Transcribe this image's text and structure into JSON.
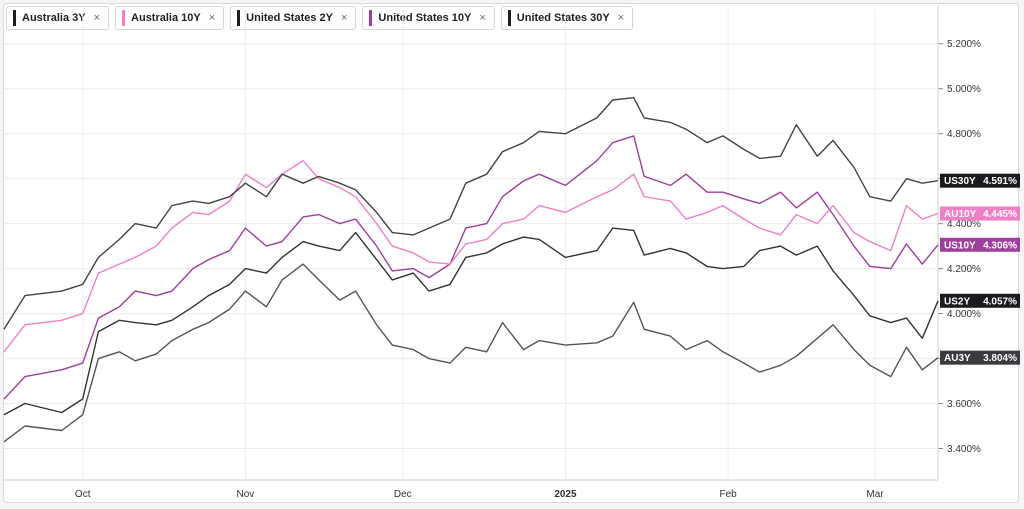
{
  "legend": [
    {
      "label": "Australia 3Y",
      "color": "#1e1e1e"
    },
    {
      "label": "Australia 10Y",
      "color": "#f07fc6"
    },
    {
      "label": "United States 2Y",
      "color": "#1e1e1e"
    },
    {
      "label": "United States 10Y",
      "color": "#9d3f9d"
    },
    {
      "label": "United States 30Y",
      "color": "#1e1e1e"
    }
  ],
  "close_glyph": "×",
  "chart_data": {
    "type": "line",
    "x_ticks": [
      "Oct",
      "Nov",
      "Dec",
      "2025",
      "Feb",
      "Mar"
    ],
    "y_ticks": [
      "3.400%",
      "3.600%",
      "3.800%",
      "4.000%",
      "4.200%",
      "4.400%",
      "4.600%",
      "4.800%",
      "5.000%",
      "5.200%"
    ],
    "ylim": [
      3.26,
      5.35
    ],
    "grid": true,
    "x_range": [
      "2024-09-16",
      "2025-03-13"
    ],
    "series": [
      {
        "name": "US30Y",
        "value_label": "4.591%",
        "color": "#444444",
        "tag_color": "#1b1b1f",
        "points": [
          [
            "2024-09-16",
            3.93
          ],
          [
            "2024-09-20",
            4.08
          ],
          [
            "2024-09-27",
            4.1
          ],
          [
            "2024-10-01",
            4.13
          ],
          [
            "2024-10-04",
            4.25
          ],
          [
            "2024-10-08",
            4.33
          ],
          [
            "2024-10-11",
            4.4
          ],
          [
            "2024-10-15",
            4.38
          ],
          [
            "2024-10-18",
            4.48
          ],
          [
            "2024-10-22",
            4.5
          ],
          [
            "2024-10-25",
            4.49
          ],
          [
            "2024-10-29",
            4.52
          ],
          [
            "2024-11-01",
            4.58
          ],
          [
            "2024-11-05",
            4.52
          ],
          [
            "2024-11-08",
            4.62
          ],
          [
            "2024-11-12",
            4.58
          ],
          [
            "2024-11-15",
            4.61
          ],
          [
            "2024-11-19",
            4.58
          ],
          [
            "2024-11-22",
            4.55
          ],
          [
            "2024-11-26",
            4.45
          ],
          [
            "2024-11-29",
            4.36
          ],
          [
            "2024-12-03",
            4.35
          ],
          [
            "2024-12-06",
            4.38
          ],
          [
            "2024-12-10",
            4.42
          ],
          [
            "2024-12-13",
            4.58
          ],
          [
            "2024-12-17",
            4.62
          ],
          [
            "2024-12-20",
            4.72
          ],
          [
            "2024-12-24",
            4.76
          ],
          [
            "2024-12-27",
            4.81
          ],
          [
            "2025-01-01",
            4.8
          ],
          [
            "2025-01-07",
            4.87
          ],
          [
            "2025-01-10",
            4.95
          ],
          [
            "2025-01-14",
            4.96
          ],
          [
            "2025-01-16",
            4.87
          ],
          [
            "2025-01-21",
            4.85
          ],
          [
            "2025-01-24",
            4.82
          ],
          [
            "2025-01-28",
            4.76
          ],
          [
            "2025-01-31",
            4.79
          ],
          [
            "2025-02-04",
            4.73
          ],
          [
            "2025-02-07",
            4.69
          ],
          [
            "2025-02-11",
            4.7
          ],
          [
            "2025-02-14",
            4.84
          ],
          [
            "2025-02-18",
            4.7
          ],
          [
            "2025-02-21",
            4.77
          ],
          [
            "2025-02-25",
            4.65
          ],
          [
            "2025-02-28",
            4.52
          ],
          [
            "2025-03-04",
            4.5
          ],
          [
            "2025-03-07",
            4.6
          ],
          [
            "2025-03-10",
            4.58
          ],
          [
            "2025-03-13",
            4.591
          ]
        ]
      },
      {
        "name": "AU10Y",
        "value_label": "4.445%",
        "color": "#f07fc6",
        "tag_color": "#f07fc6",
        "points": [
          [
            "2024-09-16",
            3.83
          ],
          [
            "2024-09-20",
            3.95
          ],
          [
            "2024-09-27",
            3.97
          ],
          [
            "2024-10-01",
            4.0
          ],
          [
            "2024-10-04",
            4.18
          ],
          [
            "2024-10-08",
            4.22
          ],
          [
            "2024-10-11",
            4.25
          ],
          [
            "2024-10-15",
            4.3
          ],
          [
            "2024-10-18",
            4.38
          ],
          [
            "2024-10-22",
            4.45
          ],
          [
            "2024-10-25",
            4.44
          ],
          [
            "2024-10-29",
            4.5
          ],
          [
            "2024-11-01",
            4.62
          ],
          [
            "2024-11-05",
            4.56
          ],
          [
            "2024-11-08",
            4.62
          ],
          [
            "2024-11-12",
            4.68
          ],
          [
            "2024-11-15",
            4.6
          ],
          [
            "2024-11-19",
            4.56
          ],
          [
            "2024-11-22",
            4.52
          ],
          [
            "2024-11-26",
            4.4
          ],
          [
            "2024-11-29",
            4.3
          ],
          [
            "2024-12-03",
            4.27
          ],
          [
            "2024-12-06",
            4.23
          ],
          [
            "2024-12-10",
            4.22
          ],
          [
            "2024-12-13",
            4.31
          ],
          [
            "2024-12-17",
            4.33
          ],
          [
            "2024-12-20",
            4.4
          ],
          [
            "2024-12-24",
            4.42
          ],
          [
            "2024-12-27",
            4.48
          ],
          [
            "2025-01-01",
            4.45
          ],
          [
            "2025-01-07",
            4.52
          ],
          [
            "2025-01-10",
            4.55
          ],
          [
            "2025-01-14",
            4.62
          ],
          [
            "2025-01-16",
            4.52
          ],
          [
            "2025-01-21",
            4.5
          ],
          [
            "2025-01-24",
            4.42
          ],
          [
            "2025-01-28",
            4.45
          ],
          [
            "2025-01-31",
            4.48
          ],
          [
            "2025-02-04",
            4.42
          ],
          [
            "2025-02-07",
            4.38
          ],
          [
            "2025-02-11",
            4.35
          ],
          [
            "2025-02-14",
            4.44
          ],
          [
            "2025-02-18",
            4.4
          ],
          [
            "2025-02-21",
            4.48
          ],
          [
            "2025-02-25",
            4.36
          ],
          [
            "2025-02-28",
            4.32
          ],
          [
            "2025-03-04",
            4.28
          ],
          [
            "2025-03-07",
            4.48
          ],
          [
            "2025-03-10",
            4.42
          ],
          [
            "2025-03-13",
            4.445
          ]
        ]
      },
      {
        "name": "US10Y",
        "value_label": "4.306%",
        "color": "#9d3f9d",
        "tag_color": "#9d3f9d",
        "points": [
          [
            "2024-09-16",
            3.62
          ],
          [
            "2024-09-20",
            3.72
          ],
          [
            "2024-09-27",
            3.75
          ],
          [
            "2024-10-01",
            3.78
          ],
          [
            "2024-10-04",
            3.98
          ],
          [
            "2024-10-08",
            4.03
          ],
          [
            "2024-10-11",
            4.1
          ],
          [
            "2024-10-15",
            4.08
          ],
          [
            "2024-10-18",
            4.1
          ],
          [
            "2024-10-22",
            4.2
          ],
          [
            "2024-10-25",
            4.24
          ],
          [
            "2024-10-29",
            4.28
          ],
          [
            "2024-11-01",
            4.38
          ],
          [
            "2024-11-05",
            4.3
          ],
          [
            "2024-11-08",
            4.32
          ],
          [
            "2024-11-12",
            4.43
          ],
          [
            "2024-11-15",
            4.44
          ],
          [
            "2024-11-19",
            4.4
          ],
          [
            "2024-11-22",
            4.42
          ],
          [
            "2024-11-26",
            4.3
          ],
          [
            "2024-11-29",
            4.19
          ],
          [
            "2024-12-03",
            4.2
          ],
          [
            "2024-12-06",
            4.16
          ],
          [
            "2024-12-10",
            4.22
          ],
          [
            "2024-12-13",
            4.38
          ],
          [
            "2024-12-17",
            4.4
          ],
          [
            "2024-12-20",
            4.52
          ],
          [
            "2024-12-24",
            4.59
          ],
          [
            "2024-12-27",
            4.62
          ],
          [
            "2025-01-01",
            4.57
          ],
          [
            "2025-01-07",
            4.68
          ],
          [
            "2025-01-10",
            4.76
          ],
          [
            "2025-01-14",
            4.79
          ],
          [
            "2025-01-16",
            4.61
          ],
          [
            "2025-01-21",
            4.57
          ],
          [
            "2025-01-24",
            4.62
          ],
          [
            "2025-01-28",
            4.54
          ],
          [
            "2025-01-31",
            4.54
          ],
          [
            "2025-02-04",
            4.51
          ],
          [
            "2025-02-07",
            4.49
          ],
          [
            "2025-02-11",
            4.54
          ],
          [
            "2025-02-14",
            4.47
          ],
          [
            "2025-02-18",
            4.54
          ],
          [
            "2025-02-21",
            4.44
          ],
          [
            "2025-02-25",
            4.3
          ],
          [
            "2025-02-28",
            4.21
          ],
          [
            "2025-03-04",
            4.2
          ],
          [
            "2025-03-07",
            4.31
          ],
          [
            "2025-03-10",
            4.22
          ],
          [
            "2025-03-13",
            4.306
          ]
        ]
      },
      {
        "name": "US2Y",
        "value_label": "4.057%",
        "color": "#333333",
        "tag_color": "#1b1b1f",
        "points": [
          [
            "2024-09-16",
            3.55
          ],
          [
            "2024-09-20",
            3.6
          ],
          [
            "2024-09-27",
            3.56
          ],
          [
            "2024-10-01",
            3.62
          ],
          [
            "2024-10-04",
            3.92
          ],
          [
            "2024-10-08",
            3.97
          ],
          [
            "2024-10-11",
            3.96
          ],
          [
            "2024-10-15",
            3.95
          ],
          [
            "2024-10-18",
            3.97
          ],
          [
            "2024-10-22",
            4.03
          ],
          [
            "2024-10-25",
            4.08
          ],
          [
            "2024-10-29",
            4.13
          ],
          [
            "2024-11-01",
            4.2
          ],
          [
            "2024-11-05",
            4.18
          ],
          [
            "2024-11-08",
            4.25
          ],
          [
            "2024-11-12",
            4.32
          ],
          [
            "2024-11-15",
            4.3
          ],
          [
            "2024-11-19",
            4.28
          ],
          [
            "2024-11-22",
            4.36
          ],
          [
            "2024-11-26",
            4.24
          ],
          [
            "2024-11-29",
            4.15
          ],
          [
            "2024-12-03",
            4.18
          ],
          [
            "2024-12-06",
            4.1
          ],
          [
            "2024-12-10",
            4.13
          ],
          [
            "2024-12-13",
            4.25
          ],
          [
            "2024-12-17",
            4.27
          ],
          [
            "2024-12-20",
            4.31
          ],
          [
            "2024-12-24",
            4.34
          ],
          [
            "2024-12-27",
            4.33
          ],
          [
            "2025-01-01",
            4.25
          ],
          [
            "2025-01-07",
            4.28
          ],
          [
            "2025-01-10",
            4.38
          ],
          [
            "2025-01-14",
            4.37
          ],
          [
            "2025-01-16",
            4.26
          ],
          [
            "2025-01-21",
            4.29
          ],
          [
            "2025-01-24",
            4.27
          ],
          [
            "2025-01-28",
            4.21
          ],
          [
            "2025-01-31",
            4.2
          ],
          [
            "2025-02-04",
            4.21
          ],
          [
            "2025-02-07",
            4.28
          ],
          [
            "2025-02-11",
            4.3
          ],
          [
            "2025-02-14",
            4.26
          ],
          [
            "2025-02-18",
            4.3
          ],
          [
            "2025-02-21",
            4.19
          ],
          [
            "2025-02-25",
            4.08
          ],
          [
            "2025-02-28",
            3.99
          ],
          [
            "2025-03-04",
            3.96
          ],
          [
            "2025-03-07",
            3.98
          ],
          [
            "2025-03-10",
            3.89
          ],
          [
            "2025-03-13",
            4.057
          ]
        ]
      },
      {
        "name": "AU3Y",
        "value_label": "3.804%",
        "color": "#555555",
        "tag_color": "#3a3a3f",
        "points": [
          [
            "2024-09-16",
            3.43
          ],
          [
            "2024-09-20",
            3.5
          ],
          [
            "2024-09-27",
            3.48
          ],
          [
            "2024-10-01",
            3.55
          ],
          [
            "2024-10-04",
            3.8
          ],
          [
            "2024-10-08",
            3.83
          ],
          [
            "2024-10-11",
            3.79
          ],
          [
            "2024-10-15",
            3.82
          ],
          [
            "2024-10-18",
            3.88
          ],
          [
            "2024-10-22",
            3.93
          ],
          [
            "2024-10-25",
            3.96
          ],
          [
            "2024-10-29",
            4.02
          ],
          [
            "2024-11-01",
            4.1
          ],
          [
            "2024-11-05",
            4.03
          ],
          [
            "2024-11-08",
            4.15
          ],
          [
            "2024-11-12",
            4.22
          ],
          [
            "2024-11-15",
            4.15
          ],
          [
            "2024-11-19",
            4.06
          ],
          [
            "2024-11-22",
            4.1
          ],
          [
            "2024-11-26",
            3.95
          ],
          [
            "2024-11-29",
            3.86
          ],
          [
            "2024-12-03",
            3.84
          ],
          [
            "2024-12-06",
            3.8
          ],
          [
            "2024-12-10",
            3.78
          ],
          [
            "2024-12-13",
            3.85
          ],
          [
            "2024-12-17",
            3.83
          ],
          [
            "2024-12-20",
            3.96
          ],
          [
            "2024-12-24",
            3.84
          ],
          [
            "2024-12-27",
            3.88
          ],
          [
            "2025-01-01",
            3.86
          ],
          [
            "2025-01-07",
            3.87
          ],
          [
            "2025-01-10",
            3.9
          ],
          [
            "2025-01-14",
            4.05
          ],
          [
            "2025-01-16",
            3.93
          ],
          [
            "2025-01-21",
            3.9
          ],
          [
            "2025-01-24",
            3.84
          ],
          [
            "2025-01-28",
            3.88
          ],
          [
            "2025-01-31",
            3.83
          ],
          [
            "2025-02-04",
            3.78
          ],
          [
            "2025-02-07",
            3.74
          ],
          [
            "2025-02-11",
            3.77
          ],
          [
            "2025-02-14",
            3.81
          ],
          [
            "2025-02-18",
            3.89
          ],
          [
            "2025-02-21",
            3.95
          ],
          [
            "2025-02-25",
            3.84
          ],
          [
            "2025-02-28",
            3.77
          ],
          [
            "2025-03-04",
            3.72
          ],
          [
            "2025-03-07",
            3.85
          ],
          [
            "2025-03-10",
            3.75
          ],
          [
            "2025-03-13",
            3.804
          ]
        ]
      }
    ]
  }
}
